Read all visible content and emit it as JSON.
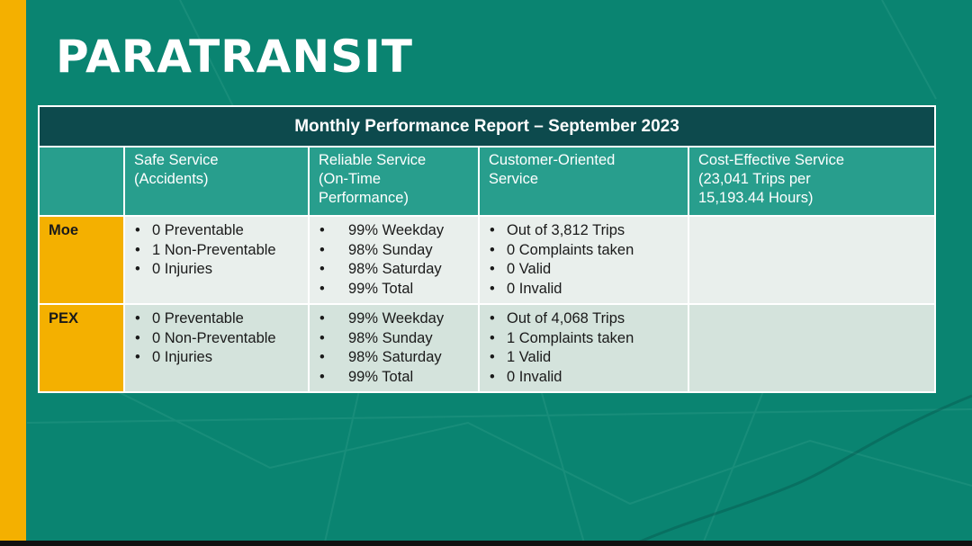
{
  "slide": {
    "title": "PARATRANSIT",
    "colors": {
      "background": "#0a8471",
      "accent_bar": "#f4b000",
      "table_header": "#0d4a4d",
      "column_header": "#289e8d"
    }
  },
  "table": {
    "title": "Monthly Performance Report – September 2023",
    "columns": [
      "",
      "Safe Service\n(Accidents)",
      "Reliable Service\n(On-Time\nPerformance)",
      "Customer-Oriented\nService",
      "Cost-Effective Service\n(23,041 Trips per\n15,193.44  Hours)"
    ],
    "rows": [
      {
        "label": "Moe",
        "safe": [
          "0 Preventable",
          "1 Non-Preventable",
          "0 Injuries"
        ],
        "reliable": [
          "99% Weekday",
          "98% Sunday",
          "98% Saturday",
          "99% Total"
        ],
        "customer": [
          "Out of 3,812 Trips",
          "0 Complaints taken",
          "0 Valid",
          "0 Invalid"
        ],
        "cost": ""
      },
      {
        "label": "PEX",
        "safe": [
          "0 Preventable",
          "0 Non-Preventable",
          "0 Injuries"
        ],
        "reliable": [
          "99% Weekday",
          "98% Sunday",
          "98% Saturday",
          "99% Total"
        ],
        "customer": [
          "Out of 4,068 Trips",
          "1 Complaints taken",
          "1 Valid",
          "0 Invalid"
        ],
        "cost": ""
      }
    ]
  }
}
